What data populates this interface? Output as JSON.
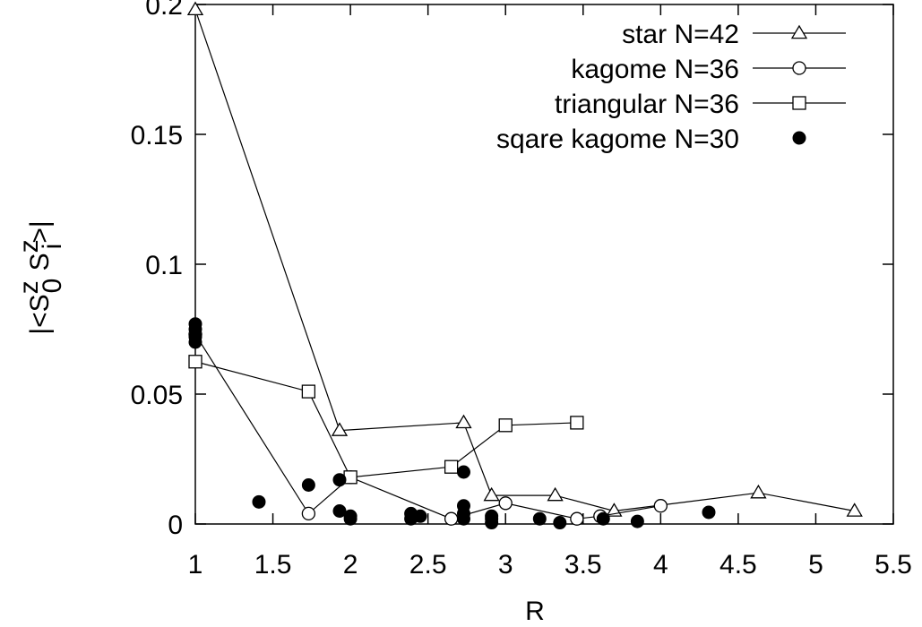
{
  "chart_data": {
    "type": "scatter",
    "xlabel": "R",
    "ylabel": "|<S^z_0 S^z_i>|",
    "xlim": [
      1,
      5.5
    ],
    "ylim": [
      0,
      0.2
    ],
    "xticks": [
      "1",
      "1.5",
      "2",
      "2.5",
      "3",
      "3.5",
      "4",
      "4.5",
      "5",
      "5.5"
    ],
    "xtick_values": [
      1,
      1.5,
      2,
      2.5,
      3,
      3.5,
      4,
      4.5,
      5,
      5.5
    ],
    "yticks": [
      "0",
      "0.05",
      "0.1",
      "0.15",
      "0.2"
    ],
    "ytick_values": [
      0,
      0.05,
      0.1,
      0.15,
      0.2
    ],
    "grid": false,
    "legend_position": "top-right",
    "series": [
      {
        "name": "star N=42",
        "marker": "triangle-open",
        "line": true,
        "x": [
          1.0,
          1.93,
          2.73,
          2.91,
          3.32,
          3.7,
          4.63,
          5.25
        ],
        "y": [
          0.198,
          0.036,
          0.039,
          0.011,
          0.011,
          0.005,
          0.012,
          0.005
        ]
      },
      {
        "name": "kagome N=36",
        "marker": "circle-open",
        "line": true,
        "x": [
          1.0,
          1.73,
          2.0,
          2.65,
          3.0,
          3.46,
          3.61,
          4.0
        ],
        "y": [
          0.073,
          0.004,
          0.018,
          0.002,
          0.008,
          0.002,
          0.003,
          0.007
        ]
      },
      {
        "name": "triangular N=36",
        "marker": "square-open",
        "line": true,
        "x": [
          1.0,
          1.73,
          2.0,
          2.65,
          3.0,
          3.46
        ],
        "y": [
          0.0625,
          0.051,
          0.018,
          0.022,
          0.038,
          0.039
        ]
      },
      {
        "name": "sqare kagome N=30",
        "marker": "circle-filled",
        "line": false,
        "x": [
          1.0,
          1.0,
          1.0,
          1.0,
          1.41,
          1.73,
          1.93,
          1.93,
          2.0,
          2.0,
          2.39,
          2.39,
          2.45,
          2.73,
          2.73,
          2.73,
          2.73,
          2.91,
          2.91,
          2.91,
          3.22,
          3.35,
          3.63,
          3.85,
          4.31
        ],
        "y": [
          0.077,
          0.075,
          0.072,
          0.07,
          0.0085,
          0.015,
          0.017,
          0.005,
          0.003,
          0.002,
          0.004,
          0.002,
          0.003,
          0.02,
          0.007,
          0.004,
          0.002,
          0.003,
          0.002,
          0.0005,
          0.002,
          0.0005,
          0.002,
          0.001,
          0.0045
        ]
      }
    ]
  }
}
